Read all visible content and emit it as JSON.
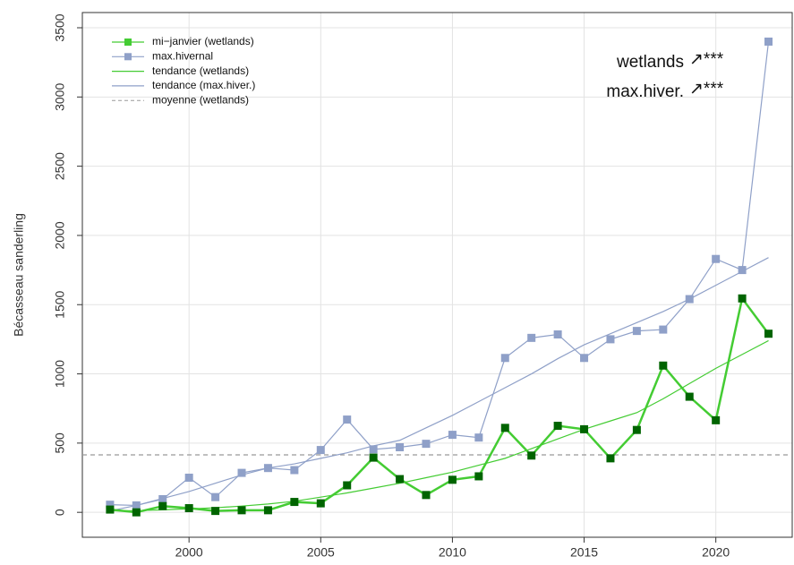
{
  "chart_data": {
    "type": "line",
    "ylabel": "Bécasseau sanderling",
    "x": [
      1997,
      1998,
      1999,
      2000,
      2001,
      2002,
      2003,
      2004,
      2005,
      2006,
      2007,
      2008,
      2009,
      2010,
      2011,
      2012,
      2013,
      2014,
      2015,
      2016,
      2017,
      2018,
      2019,
      2020,
      2021,
      2022
    ],
    "series": [
      {
        "name": "mi−janvier (wetlands)",
        "color": "#44cc33",
        "marker_color": "#006400",
        "marker": true,
        "width": 2.5,
        "values": [
          20,
          0,
          45,
          30,
          10,
          15,
          15,
          75,
          65,
          195,
          395,
          240,
          125,
          235,
          260,
          610,
          410,
          625,
          600,
          390,
          595,
          1060,
          835,
          665,
          1545,
          1290
        ]
      },
      {
        "name": "max.hivernal",
        "color": "#8fa0c8",
        "marker_color": "#8fa0c8",
        "marker": true,
        "width": 1.2,
        "values": [
          55,
          50,
          95,
          250,
          110,
          285,
          320,
          305,
          450,
          670,
          455,
          470,
          495,
          560,
          540,
          1115,
          1260,
          1285,
          1115,
          1250,
          1310,
          1320,
          1540,
          1830,
          1750,
          3400
        ]
      },
      {
        "name": "tendance (wetlands)",
        "color": "#44cc33",
        "marker": false,
        "width": 1.2,
        "values": [
          10,
          12,
          18,
          25,
          33,
          45,
          60,
          80,
          110,
          140,
          175,
          210,
          250,
          290,
          340,
          390,
          460,
          530,
          600,
          660,
          720,
          820,
          930,
          1040,
          1140,
          1240
        ]
      },
      {
        "name": "tendance (max.hiver.)",
        "color": "#8fa0c8",
        "marker": false,
        "width": 1.2,
        "values": [
          10,
          50,
          100,
          150,
          210,
          270,
          320,
          350,
          390,
          430,
          480,
          520,
          610,
          700,
          800,
          900,
          1000,
          1110,
          1210,
          1290,
          1370,
          1450,
          1540,
          1640,
          1740,
          1840
        ]
      }
    ],
    "mean": {
      "name": "moyenne (wetlands)",
      "value": 415,
      "color": "#999999"
    },
    "annotations": [
      {
        "label": "wetlands",
        "symbol": "↗***"
      },
      {
        "label": "max.hiver.",
        "symbol": "↗***"
      }
    ],
    "xlim": [
      1995.95,
      2022.9
    ],
    "xticks": [
      2000,
      2005,
      2010,
      2015,
      2020
    ],
    "ylim": [
      -180,
      3610
    ],
    "yticks": [
      0,
      500,
      1000,
      1500,
      2000,
      2500,
      3000,
      3500
    ],
    "grid": true,
    "legend": "top-left"
  }
}
